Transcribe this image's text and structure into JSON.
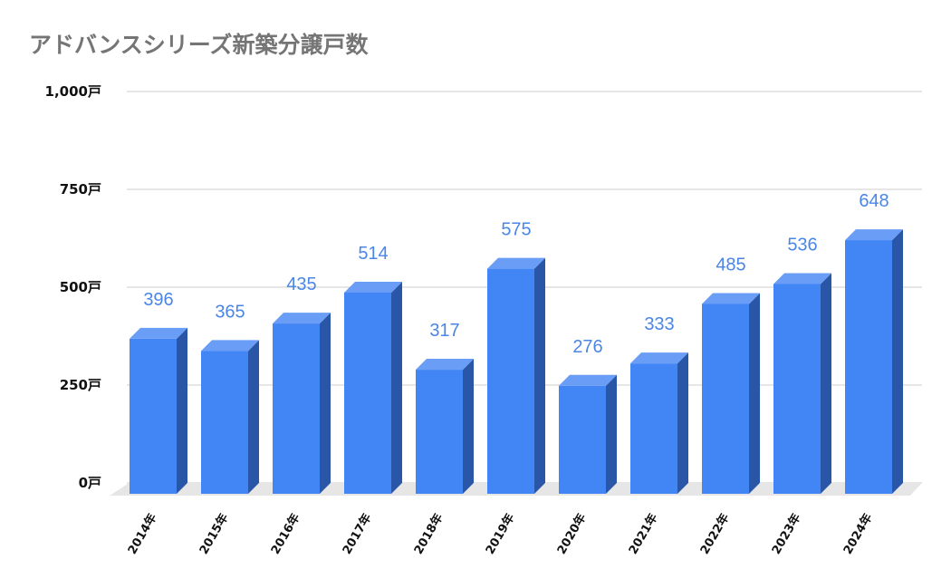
{
  "chart_data": {
    "type": "bar",
    "title": "アドバンスシリーズ新築分譲戸数",
    "xlabel": "",
    "ylabel": "",
    "categories": [
      "2014年",
      "2015年",
      "2016年",
      "2017年",
      "2018年",
      "2019年",
      "2020年",
      "2021年",
      "2022年",
      "2023年",
      "2024年"
    ],
    "values": [
      396,
      365,
      435,
      514,
      317,
      575,
      276,
      333,
      485,
      536,
      648
    ],
    "data_labels": [
      "396",
      "365",
      "435",
      "514",
      "317",
      "575",
      "276",
      "333",
      "485",
      "536",
      "648"
    ],
    "ylim": [
      0,
      1000
    ],
    "yticks": [
      0,
      250,
      500,
      750,
      1000
    ],
    "ytick_labels": [
      "0戸",
      "250戸",
      "500戸",
      "750戸",
      "1,000戸"
    ],
    "grid": true,
    "style_3d": true,
    "colors": {
      "bar_front": "#4285f4",
      "bar_top": "#6a9ef6",
      "bar_side": "#2a56a8",
      "label": "#4a86e8",
      "floor": "#e6e6e6",
      "grid": "#cccccc"
    }
  }
}
